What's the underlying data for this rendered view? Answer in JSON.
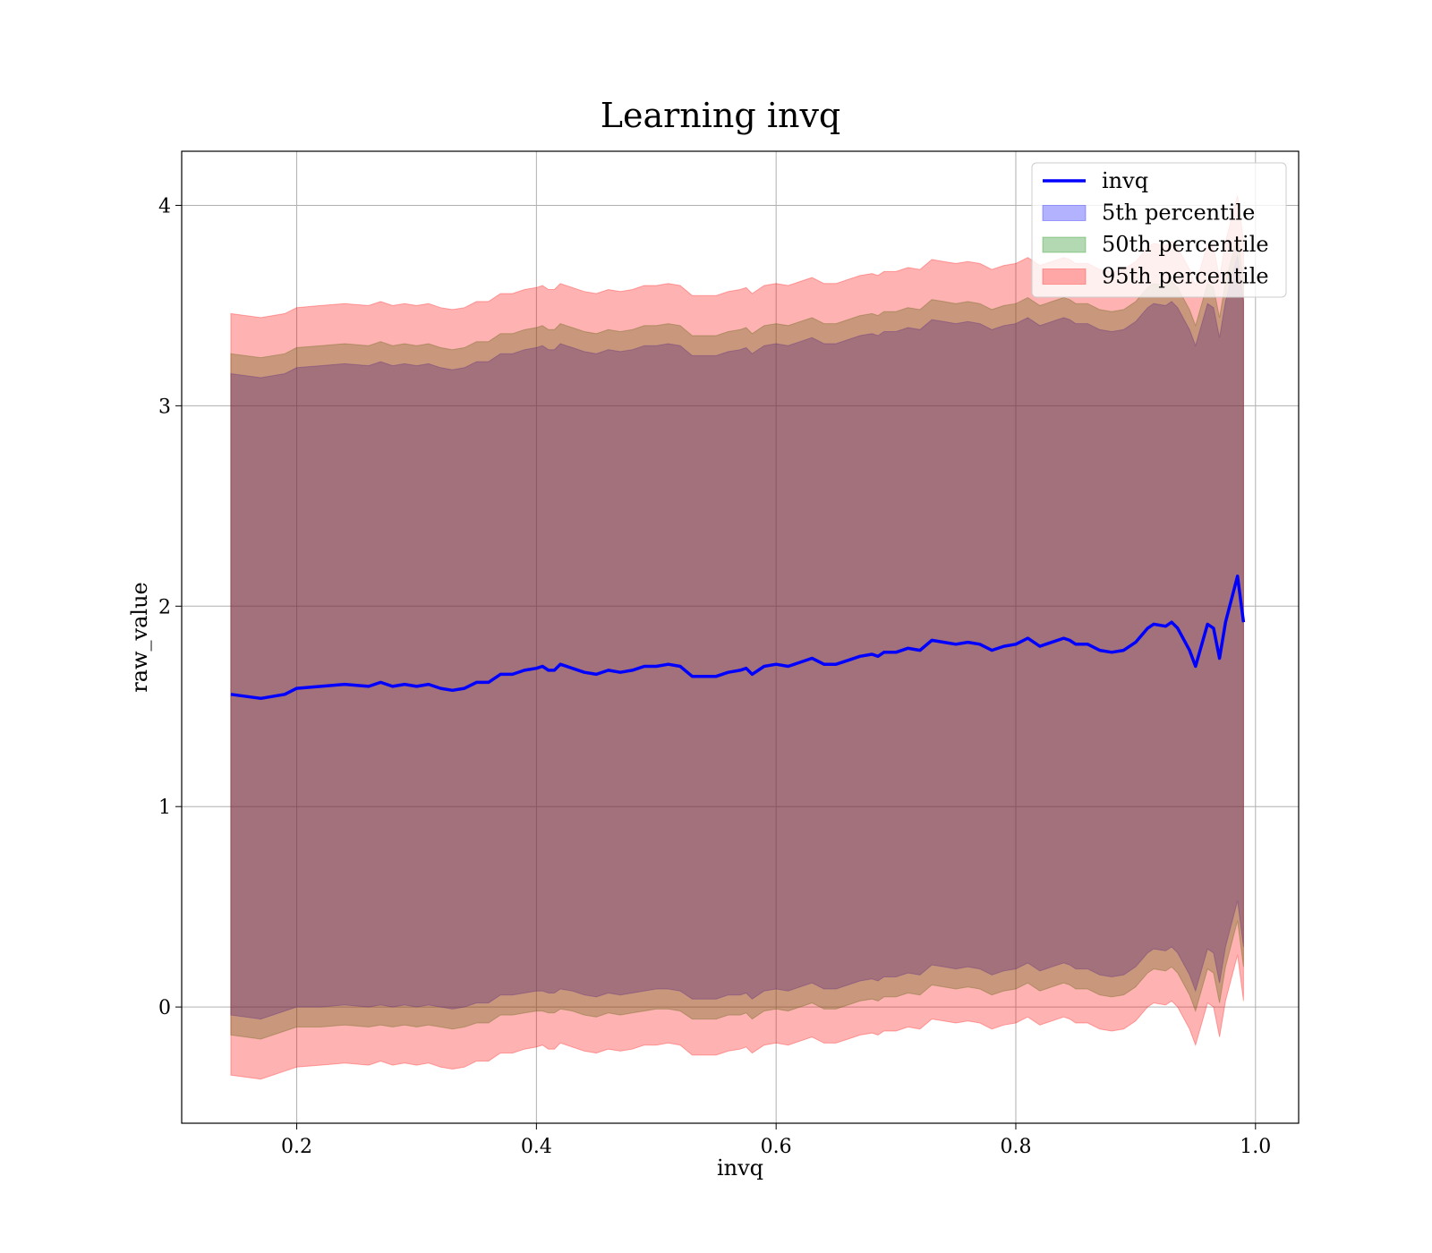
{
  "chart_data": {
    "type": "line",
    "title": "Learning invq",
    "xlabel": "invq",
    "ylabel": "raw_value",
    "xlim": [
      0.104,
      1.036
    ],
    "ylim": [
      -0.58,
      4.27
    ],
    "xticks": [
      0.2,
      0.4,
      0.6,
      0.8,
      1.0
    ],
    "xtick_labels": [
      "0.2",
      "0.4",
      "0.6",
      "0.8",
      "1.0"
    ],
    "yticks": [
      0,
      1,
      2,
      3,
      4
    ],
    "ytick_labels": [
      "0",
      "1",
      "2",
      "3",
      "4"
    ],
    "grid": true,
    "legend_position": "top-right",
    "colors": {
      "line": "#0000ff",
      "band_5": "#0000ff",
      "band_50": "#008000",
      "band_95": "#ff0000"
    },
    "legend": [
      {
        "label": "invq",
        "kind": "line",
        "color": "#0000ff"
      },
      {
        "label": "5th percentile",
        "kind": "patch",
        "color": "#0000ff"
      },
      {
        "label": "50th percentile",
        "kind": "patch",
        "color": "#008000"
      },
      {
        "label": "95th percentile",
        "kind": "patch",
        "color": "#ff0000"
      }
    ],
    "x": [
      0.145,
      0.17,
      0.19,
      0.2,
      0.22,
      0.24,
      0.26,
      0.27,
      0.28,
      0.29,
      0.3,
      0.31,
      0.32,
      0.33,
      0.34,
      0.35,
      0.36,
      0.37,
      0.38,
      0.39,
      0.4,
      0.405,
      0.41,
      0.415,
      0.42,
      0.43,
      0.44,
      0.45,
      0.46,
      0.47,
      0.48,
      0.49,
      0.5,
      0.51,
      0.52,
      0.53,
      0.54,
      0.55,
      0.56,
      0.57,
      0.575,
      0.58,
      0.59,
      0.6,
      0.61,
      0.62,
      0.63,
      0.64,
      0.65,
      0.66,
      0.67,
      0.68,
      0.685,
      0.69,
      0.7,
      0.71,
      0.72,
      0.73,
      0.74,
      0.75,
      0.76,
      0.77,
      0.78,
      0.79,
      0.8,
      0.81,
      0.82,
      0.825,
      0.83,
      0.84,
      0.845,
      0.85,
      0.86,
      0.87,
      0.88,
      0.89,
      0.9,
      0.91,
      0.915,
      0.925,
      0.93,
      0.935,
      0.945,
      0.95,
      0.96,
      0.965,
      0.97,
      0.975,
      0.985,
      0.99
    ],
    "series": [
      {
        "name": "invq",
        "values": [
          1.56,
          1.54,
          1.56,
          1.59,
          1.6,
          1.61,
          1.6,
          1.62,
          1.6,
          1.61,
          1.6,
          1.61,
          1.59,
          1.58,
          1.59,
          1.62,
          1.62,
          1.66,
          1.66,
          1.68,
          1.69,
          1.7,
          1.68,
          1.68,
          1.71,
          1.69,
          1.67,
          1.66,
          1.68,
          1.67,
          1.68,
          1.7,
          1.7,
          1.71,
          1.7,
          1.65,
          1.65,
          1.65,
          1.67,
          1.68,
          1.69,
          1.66,
          1.7,
          1.71,
          1.7,
          1.72,
          1.74,
          1.71,
          1.71,
          1.73,
          1.75,
          1.76,
          1.75,
          1.77,
          1.77,
          1.79,
          1.78,
          1.83,
          1.82,
          1.81,
          1.82,
          1.81,
          1.78,
          1.8,
          1.81,
          1.84,
          1.8,
          1.81,
          1.82,
          1.84,
          1.83,
          1.81,
          1.81,
          1.78,
          1.77,
          1.78,
          1.82,
          1.89,
          1.91,
          1.9,
          1.92,
          1.89,
          1.78,
          1.7,
          1.91,
          1.89,
          1.74,
          1.92,
          2.15,
          1.92
        ]
      },
      {
        "name": "5th percentile",
        "lower": [
          -0.04,
          -0.06,
          -0.02,
          0.0,
          0.0,
          0.01,
          0.0,
          0.01,
          0.0,
          0.01,
          0.0,
          0.01,
          0.0,
          -0.01,
          0.0,
          0.02,
          0.02,
          0.06,
          0.06,
          0.07,
          0.08,
          0.08,
          0.07,
          0.07,
          0.09,
          0.08,
          0.06,
          0.05,
          0.07,
          0.06,
          0.07,
          0.08,
          0.09,
          0.09,
          0.08,
          0.04,
          0.04,
          0.04,
          0.06,
          0.06,
          0.07,
          0.04,
          0.08,
          0.09,
          0.08,
          0.1,
          0.12,
          0.09,
          0.09,
          0.11,
          0.13,
          0.14,
          0.13,
          0.15,
          0.15,
          0.17,
          0.16,
          0.21,
          0.2,
          0.19,
          0.2,
          0.19,
          0.16,
          0.18,
          0.19,
          0.22,
          0.18,
          0.19,
          0.2,
          0.22,
          0.21,
          0.19,
          0.19,
          0.16,
          0.15,
          0.16,
          0.2,
          0.27,
          0.29,
          0.28,
          0.3,
          0.27,
          0.16,
          0.08,
          0.29,
          0.27,
          0.12,
          0.3,
          0.53,
          0.3
        ],
        "upper": [
          3.16,
          3.14,
          3.16,
          3.19,
          3.2,
          3.21,
          3.2,
          3.22,
          3.2,
          3.21,
          3.2,
          3.21,
          3.19,
          3.18,
          3.19,
          3.22,
          3.22,
          3.26,
          3.26,
          3.28,
          3.29,
          3.3,
          3.28,
          3.28,
          3.31,
          3.29,
          3.27,
          3.26,
          3.28,
          3.27,
          3.28,
          3.3,
          3.3,
          3.31,
          3.3,
          3.25,
          3.25,
          3.25,
          3.27,
          3.28,
          3.29,
          3.26,
          3.3,
          3.31,
          3.3,
          3.32,
          3.34,
          3.31,
          3.31,
          3.33,
          3.35,
          3.36,
          3.35,
          3.37,
          3.37,
          3.39,
          3.38,
          3.43,
          3.42,
          3.41,
          3.42,
          3.41,
          3.38,
          3.4,
          3.41,
          3.44,
          3.4,
          3.41,
          3.42,
          3.44,
          3.43,
          3.41,
          3.41,
          3.38,
          3.37,
          3.38,
          3.42,
          3.49,
          3.51,
          3.5,
          3.52,
          3.49,
          3.38,
          3.3,
          3.51,
          3.49,
          3.34,
          3.52,
          3.75,
          3.52
        ]
      },
      {
        "name": "50th percentile",
        "lower": [
          -0.14,
          -0.16,
          -0.12,
          -0.1,
          -0.1,
          -0.09,
          -0.1,
          -0.09,
          -0.1,
          -0.09,
          -0.1,
          -0.09,
          -0.1,
          -0.11,
          -0.1,
          -0.08,
          -0.08,
          -0.04,
          -0.04,
          -0.03,
          -0.02,
          -0.02,
          -0.03,
          -0.03,
          -0.01,
          -0.02,
          -0.04,
          -0.05,
          -0.03,
          -0.04,
          -0.03,
          -0.02,
          -0.01,
          -0.01,
          -0.02,
          -0.06,
          -0.06,
          -0.06,
          -0.04,
          -0.04,
          -0.03,
          -0.06,
          -0.02,
          -0.01,
          -0.02,
          0.0,
          0.02,
          -0.01,
          -0.01,
          0.01,
          0.03,
          0.04,
          0.03,
          0.05,
          0.05,
          0.07,
          0.06,
          0.11,
          0.1,
          0.09,
          0.1,
          0.09,
          0.06,
          0.08,
          0.09,
          0.12,
          0.08,
          0.09,
          0.1,
          0.12,
          0.11,
          0.09,
          0.09,
          0.06,
          0.05,
          0.06,
          0.1,
          0.17,
          0.19,
          0.18,
          0.2,
          0.17,
          0.06,
          -0.02,
          0.19,
          0.17,
          0.02,
          0.2,
          0.43,
          0.2
        ],
        "upper": [
          3.26,
          3.24,
          3.26,
          3.29,
          3.3,
          3.31,
          3.3,
          3.32,
          3.3,
          3.31,
          3.3,
          3.31,
          3.29,
          3.28,
          3.29,
          3.32,
          3.32,
          3.36,
          3.36,
          3.38,
          3.39,
          3.4,
          3.38,
          3.38,
          3.41,
          3.39,
          3.37,
          3.36,
          3.38,
          3.37,
          3.38,
          3.4,
          3.4,
          3.41,
          3.4,
          3.35,
          3.35,
          3.35,
          3.37,
          3.38,
          3.39,
          3.36,
          3.4,
          3.41,
          3.4,
          3.42,
          3.44,
          3.41,
          3.41,
          3.43,
          3.45,
          3.46,
          3.45,
          3.47,
          3.47,
          3.49,
          3.48,
          3.53,
          3.52,
          3.51,
          3.52,
          3.51,
          3.48,
          3.5,
          3.51,
          3.54,
          3.5,
          3.51,
          3.52,
          3.54,
          3.53,
          3.51,
          3.51,
          3.48,
          3.47,
          3.48,
          3.52,
          3.59,
          3.61,
          3.6,
          3.62,
          3.59,
          3.48,
          3.4,
          3.61,
          3.59,
          3.44,
          3.62,
          3.85,
          3.62
        ]
      },
      {
        "name": "95th percentile",
        "lower": [
          -0.34,
          -0.36,
          -0.32,
          -0.3,
          -0.29,
          -0.28,
          -0.29,
          -0.27,
          -0.29,
          -0.28,
          -0.29,
          -0.28,
          -0.3,
          -0.31,
          -0.3,
          -0.27,
          -0.27,
          -0.23,
          -0.23,
          -0.21,
          -0.2,
          -0.19,
          -0.21,
          -0.21,
          -0.18,
          -0.2,
          -0.22,
          -0.23,
          -0.21,
          -0.22,
          -0.21,
          -0.19,
          -0.19,
          -0.18,
          -0.19,
          -0.24,
          -0.24,
          -0.24,
          -0.22,
          -0.21,
          -0.2,
          -0.23,
          -0.19,
          -0.18,
          -0.19,
          -0.17,
          -0.15,
          -0.18,
          -0.18,
          -0.16,
          -0.14,
          -0.13,
          -0.14,
          -0.12,
          -0.12,
          -0.1,
          -0.11,
          -0.06,
          -0.07,
          -0.08,
          -0.07,
          -0.08,
          -0.11,
          -0.09,
          -0.08,
          -0.05,
          -0.09,
          -0.08,
          -0.07,
          -0.05,
          -0.06,
          -0.08,
          -0.08,
          -0.11,
          -0.12,
          -0.11,
          -0.07,
          0.0,
          0.02,
          0.01,
          0.03,
          0.0,
          -0.11,
          -0.19,
          0.02,
          0.0,
          -0.15,
          0.03,
          0.26,
          0.03
        ],
        "upper": [
          3.46,
          3.44,
          3.46,
          3.49,
          3.5,
          3.51,
          3.5,
          3.52,
          3.5,
          3.51,
          3.5,
          3.51,
          3.49,
          3.48,
          3.49,
          3.52,
          3.52,
          3.56,
          3.56,
          3.58,
          3.59,
          3.6,
          3.58,
          3.58,
          3.61,
          3.59,
          3.57,
          3.56,
          3.58,
          3.57,
          3.58,
          3.6,
          3.6,
          3.61,
          3.6,
          3.55,
          3.55,
          3.55,
          3.57,
          3.58,
          3.59,
          3.56,
          3.6,
          3.61,
          3.6,
          3.62,
          3.64,
          3.61,
          3.61,
          3.63,
          3.65,
          3.66,
          3.65,
          3.67,
          3.67,
          3.69,
          3.68,
          3.73,
          3.72,
          3.71,
          3.72,
          3.71,
          3.68,
          3.7,
          3.71,
          3.74,
          3.7,
          3.71,
          3.72,
          3.74,
          3.73,
          3.71,
          3.71,
          3.68,
          3.67,
          3.68,
          3.72,
          3.79,
          3.81,
          3.8,
          3.82,
          3.79,
          3.68,
          3.6,
          3.81,
          3.79,
          3.64,
          3.82,
          4.05,
          3.82
        ]
      }
    ]
  }
}
